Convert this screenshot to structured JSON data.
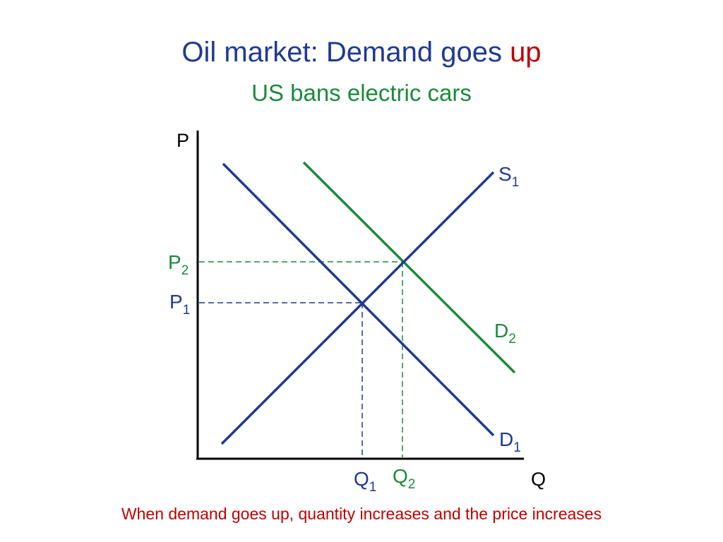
{
  "title": {
    "main": "Oil market: Demand goes",
    "accent": "up",
    "subtitle": "US bans electric cars"
  },
  "caption": "When demand goes up, quantity increases and the price increases",
  "colors": {
    "blue": "#1f3a93",
    "green": "#1a8a3c",
    "red": "#c00000",
    "axis": "#000000"
  },
  "axes": {
    "y_label": "P",
    "x_label": "Q"
  },
  "curves": {
    "supply": {
      "label": "S",
      "sub": "1"
    },
    "demand_original": {
      "label": "D",
      "sub": "1"
    },
    "demand_new": {
      "label": "D",
      "sub": "2"
    }
  },
  "equilibria": {
    "original": {
      "price_label": "P",
      "price_sub": "1",
      "qty_label": "Q",
      "qty_sub": "1"
    },
    "new": {
      "price_label": "P",
      "price_sub": "2",
      "qty_label": "Q",
      "qty_sub": "2"
    }
  }
}
